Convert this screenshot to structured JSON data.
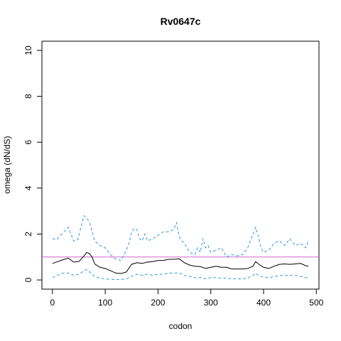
{
  "chart_data": {
    "type": "line",
    "title": "Rv0647c",
    "xlabel": "codon",
    "ylabel": "omega (dN/dS)",
    "xlim": [
      -20,
      505
    ],
    "ylim": [
      -0.4,
      10.4
    ],
    "x_ticks": [
      0,
      100,
      200,
      300,
      400,
      500
    ],
    "y_ticks": [
      0,
      2,
      4,
      6,
      8,
      10
    ],
    "reference_line": {
      "y": 1,
      "color": "#cc66cc"
    },
    "series": [
      {
        "role": "upper",
        "color": "#3399dd",
        "dash": true,
        "x": [
          0,
          8,
          15,
          22,
          30,
          35,
          40,
          48,
          55,
          60,
          65,
          70,
          75,
          80,
          90,
          100,
          110,
          120,
          130,
          140,
          145,
          150,
          155,
          160,
          165,
          170,
          175,
          180,
          190,
          200,
          210,
          220,
          230,
          235,
          240,
          245,
          250,
          260,
          270,
          275,
          280,
          285,
          290,
          295,
          300,
          310,
          320,
          330,
          340,
          350,
          360,
          370,
          380,
          385,
          390,
          395,
          400,
          410,
          420,
          430,
          440,
          450,
          460,
          470,
          480,
          485
        ],
        "y": [
          1.8,
          1.75,
          1.95,
          2.1,
          2.3,
          2.0,
          1.7,
          1.75,
          2.4,
          2.8,
          2.7,
          2.5,
          2.1,
          1.7,
          1.5,
          1.4,
          1.1,
          0.9,
          0.85,
          1.3,
          1.6,
          2.1,
          2.25,
          2.2,
          1.8,
          1.7,
          2.0,
          1.7,
          1.8,
          1.95,
          2.1,
          2.1,
          2.2,
          2.5,
          1.9,
          1.7,
          1.6,
          1.2,
          1.1,
          1.4,
          1.2,
          1.8,
          1.4,
          1.5,
          1.2,
          1.3,
          1.4,
          1.0,
          1.1,
          1.05,
          1.1,
          1.4,
          2.0,
          2.3,
          1.9,
          1.4,
          1.2,
          1.3,
          1.6,
          1.7,
          1.5,
          1.8,
          1.5,
          1.6,
          1.4,
          1.7
        ]
      },
      {
        "role": "estimate",
        "color": "#000000",
        "dash": false,
        "x": [
          0,
          10,
          20,
          30,
          40,
          50,
          60,
          65,
          70,
          75,
          80,
          90,
          100,
          110,
          120,
          130,
          140,
          150,
          160,
          170,
          180,
          190,
          200,
          210,
          220,
          230,
          240,
          250,
          260,
          270,
          280,
          290,
          300,
          310,
          320,
          330,
          340,
          350,
          360,
          370,
          380,
          385,
          390,
          400,
          410,
          420,
          430,
          440,
          450,
          460,
          470,
          480,
          485
        ],
        "y": [
          0.72,
          0.8,
          0.88,
          0.95,
          0.78,
          0.8,
          1.05,
          1.2,
          1.15,
          1.0,
          0.7,
          0.55,
          0.5,
          0.4,
          0.3,
          0.28,
          0.35,
          0.68,
          0.75,
          0.72,
          0.78,
          0.8,
          0.85,
          0.85,
          0.9,
          0.9,
          0.92,
          0.75,
          0.65,
          0.6,
          0.58,
          0.5,
          0.55,
          0.6,
          0.55,
          0.55,
          0.48,
          0.48,
          0.48,
          0.5,
          0.6,
          0.8,
          0.7,
          0.55,
          0.5,
          0.6,
          0.68,
          0.7,
          0.68,
          0.7,
          0.72,
          0.62,
          0.6
        ]
      },
      {
        "role": "lower",
        "color": "#3399dd",
        "dash": true,
        "x": [
          0,
          10,
          20,
          30,
          40,
          50,
          60,
          65,
          70,
          80,
          90,
          100,
          110,
          120,
          130,
          140,
          150,
          160,
          170,
          180,
          190,
          200,
          210,
          220,
          230,
          240,
          250,
          260,
          270,
          280,
          290,
          300,
          310,
          320,
          330,
          340,
          350,
          360,
          370,
          380,
          385,
          390,
          400,
          410,
          420,
          430,
          440,
          450,
          460,
          470,
          480,
          485
        ],
        "y": [
          0.1,
          0.2,
          0.3,
          0.3,
          0.2,
          0.25,
          0.4,
          0.45,
          0.35,
          0.15,
          0.08,
          0.05,
          0.03,
          0.02,
          0.02,
          0.05,
          0.15,
          0.25,
          0.2,
          0.25,
          0.2,
          0.25,
          0.25,
          0.3,
          0.3,
          0.3,
          0.2,
          0.15,
          0.1,
          0.1,
          0.05,
          0.1,
          0.1,
          0.08,
          0.08,
          0.05,
          0.05,
          0.05,
          0.08,
          0.2,
          0.3,
          0.2,
          0.12,
          0.1,
          0.15,
          0.2,
          0.2,
          0.2,
          0.2,
          0.15,
          0.1,
          0.08
        ]
      }
    ]
  }
}
